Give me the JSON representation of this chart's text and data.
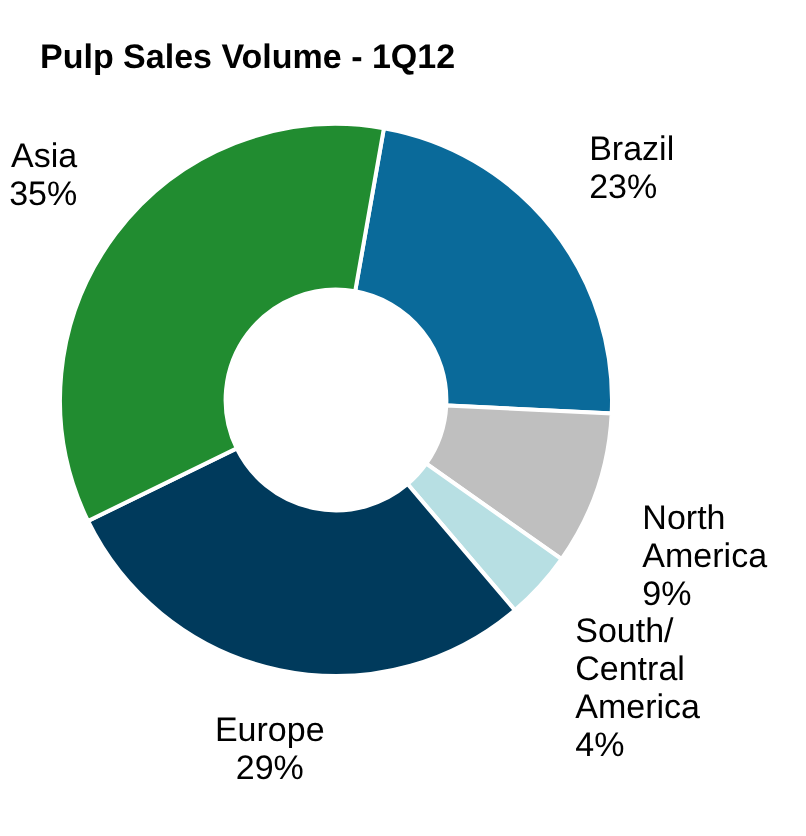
{
  "chart_data": {
    "type": "donut",
    "title": "Pulp Sales Volume - 1Q12",
    "categories": [
      "Brazil",
      "North\nAmerica",
      "South/\nCentral\nAmerica",
      "Europe",
      "Asia"
    ],
    "values": [
      23,
      9,
      4,
      29,
      35
    ],
    "value_labels": [
      "23%",
      "9%",
      "4%",
      "29%",
      "35%"
    ],
    "colors": [
      "#0a6a9a",
      "#bfbfbf",
      "#b7dfe3",
      "#003a5c",
      "#218c30"
    ]
  }
}
